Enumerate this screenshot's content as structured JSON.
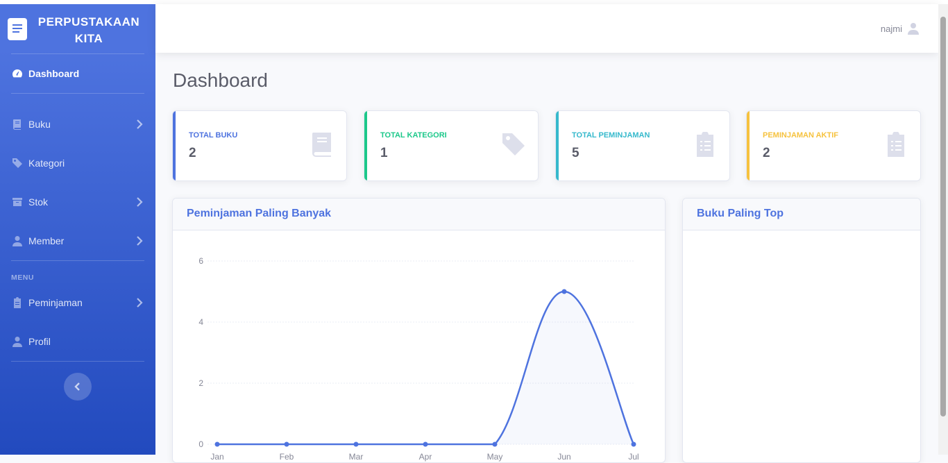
{
  "brand": {
    "line1": "PERPUSTAKAAN",
    "line2": "KITA"
  },
  "sidebar": {
    "items": [
      {
        "label": "Dashboard"
      },
      {
        "label": "Buku"
      },
      {
        "label": "Kategori"
      },
      {
        "label": "Stok"
      },
      {
        "label": "Member"
      },
      {
        "label": "Peminjaman"
      },
      {
        "label": "Profil"
      }
    ],
    "heading_menu": "MENU"
  },
  "topbar": {
    "user_name": "najmi"
  },
  "page": {
    "title": "Dashboard"
  },
  "cards": [
    {
      "label": "TOTAL BUKU",
      "value": "2",
      "color": "#4e73df",
      "icon": "book-icon"
    },
    {
      "label": "TOTAL KATEGORI",
      "value": "1",
      "color": "#1cc88a",
      "icon": "tag-icon"
    },
    {
      "label": "TOTAL PEMINJAMAN",
      "value": "5",
      "color": "#36b9cc",
      "icon": "clipboard-list-icon"
    },
    {
      "label": "PEMINJAMAN AKTIF",
      "value": "2",
      "color": "#f6c23e",
      "icon": "clipboard-list-icon"
    }
  ],
  "panels": {
    "chart_title": "Peminjaman Paling Banyak",
    "top_books_title": "Buku Paling Top"
  },
  "chart_data": {
    "type": "area",
    "categories": [
      "Jan",
      "Feb",
      "Mar",
      "Apr",
      "May",
      "Jun",
      "Jul"
    ],
    "series": [
      {
        "values": [
          0,
          0,
          0,
          0,
          0,
          5,
          0
        ]
      }
    ],
    "ylim": [
      0,
      6
    ],
    "yticks": [
      0,
      2,
      4,
      6
    ],
    "grid": true,
    "line_color": "#4e73df",
    "fill_color": "rgba(78,115,223,0.05)"
  }
}
